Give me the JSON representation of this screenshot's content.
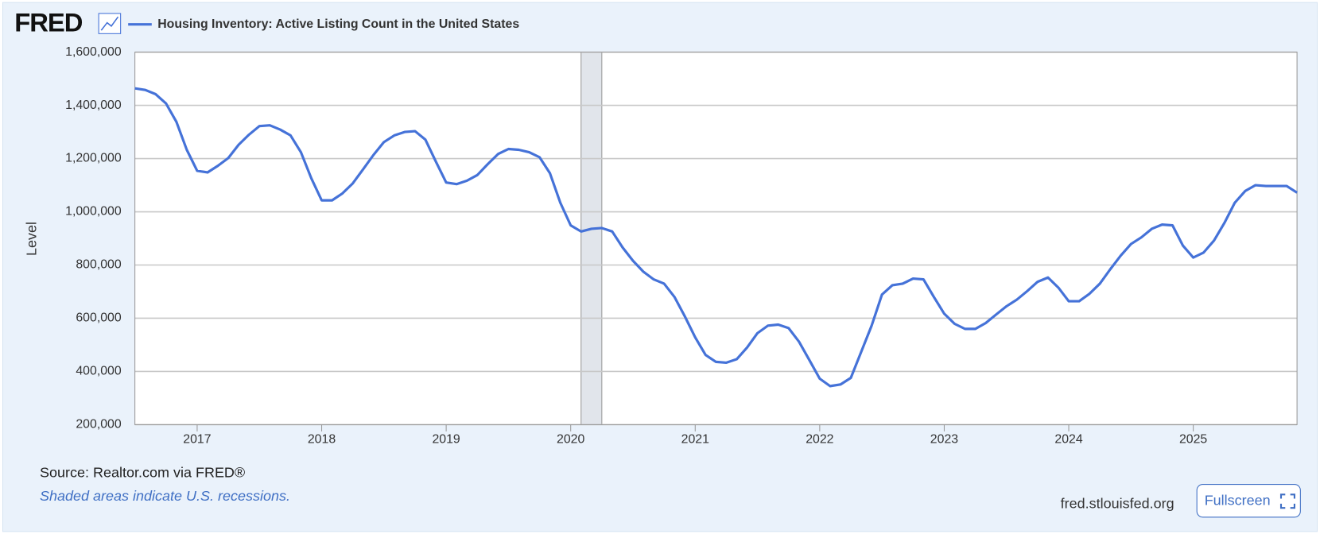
{
  "logo": "FRED",
  "chart_data": {
    "type": "line",
    "title": "Housing Inventory: Active Listing Count in the United States",
    "y_label": "Level",
    "source": "Source: Realtor.com via FRED®",
    "note": "Shaded areas indicate U.S. recessions.",
    "site": "fred.stlouisfed.org",
    "button": "Fullscreen",
    "recessions": [
      [
        "2020-02",
        "2020-04"
      ]
    ],
    "xlim": [
      "2016-07",
      "2025-11"
    ],
    "xticks": [
      {
        "value": "2017-01",
        "label": "2017"
      },
      {
        "value": "2018-01",
        "label": "2018"
      },
      {
        "value": "2019-01",
        "label": "2019"
      },
      {
        "value": "2020-01",
        "label": "2020"
      },
      {
        "value": "2021-01",
        "label": "2021"
      },
      {
        "value": "2022-01",
        "label": "2022"
      },
      {
        "value": "2023-01",
        "label": "2023"
      },
      {
        "value": "2024-01",
        "label": "2024"
      },
      {
        "value": "2025-01",
        "label": "2025"
      }
    ],
    "ylim": [
      200000,
      1600000
    ],
    "yticks": [
      {
        "value": 200000,
        "label": "200,000"
      },
      {
        "value": 400000,
        "label": "400,000"
      },
      {
        "value": 600000,
        "label": "600,000"
      },
      {
        "value": 800000,
        "label": "800,000"
      },
      {
        "value": 1000000,
        "label": "1,000,000"
      },
      {
        "value": 1200000,
        "label": "1,200,000"
      },
      {
        "value": 1400000,
        "label": "1,400,000"
      },
      {
        "value": 1600000,
        "label": "1,600,000"
      }
    ],
    "grid": true,
    "x": [
      "2016-07",
      "2016-08",
      "2016-09",
      "2016-10",
      "2016-11",
      "2016-12",
      "2017-01",
      "2017-02",
      "2017-03",
      "2017-04",
      "2017-05",
      "2017-06",
      "2017-07",
      "2017-08",
      "2017-09",
      "2017-10",
      "2017-11",
      "2017-12",
      "2018-01",
      "2018-02",
      "2018-03",
      "2018-04",
      "2018-05",
      "2018-06",
      "2018-07",
      "2018-08",
      "2018-09",
      "2018-10",
      "2018-11",
      "2018-12",
      "2019-01",
      "2019-02",
      "2019-03",
      "2019-04",
      "2019-05",
      "2019-06",
      "2019-07",
      "2019-08",
      "2019-09",
      "2019-10",
      "2019-11",
      "2019-12",
      "2020-01",
      "2020-02",
      "2020-03",
      "2020-04",
      "2020-05",
      "2020-06",
      "2020-07",
      "2020-08",
      "2020-09",
      "2020-10",
      "2020-11",
      "2020-12",
      "2021-01",
      "2021-02",
      "2021-03",
      "2021-04",
      "2021-05",
      "2021-06",
      "2021-07",
      "2021-08",
      "2021-09",
      "2021-10",
      "2021-11",
      "2021-12",
      "2022-01",
      "2022-02",
      "2022-03",
      "2022-04",
      "2022-05",
      "2022-06",
      "2022-07",
      "2022-08",
      "2022-09",
      "2022-10",
      "2022-11",
      "2022-12",
      "2023-01",
      "2023-02",
      "2023-03",
      "2023-04",
      "2023-05",
      "2023-06",
      "2023-07",
      "2023-08",
      "2023-09",
      "2023-10",
      "2023-11",
      "2023-12",
      "2024-01",
      "2024-02",
      "2024-03",
      "2024-04",
      "2024-05",
      "2024-06",
      "2024-07",
      "2024-08",
      "2024-09",
      "2024-10",
      "2024-11",
      "2024-12",
      "2025-01",
      "2025-02",
      "2025-03",
      "2025-04",
      "2025-05",
      "2025-06",
      "2025-07",
      "2025-08",
      "2025-09",
      "2025-10",
      "2025-11"
    ],
    "series": [
      {
        "name": "Housing Inventory: Active Listing Count in the United States",
        "color": "#4572d8",
        "values": [
          1464000,
          1458000,
          1442000,
          1407000,
          1338000,
          1233000,
          1154000,
          1148000,
          1173000,
          1202000,
          1252000,
          1290000,
          1322000,
          1325000,
          1309000,
          1287000,
          1224000,
          1126000,
          1043000,
          1043000,
          1069000,
          1107000,
          1160000,
          1214000,
          1262000,
          1287000,
          1300000,
          1303000,
          1271000,
          1189000,
          1110000,
          1104000,
          1117000,
          1138000,
          1179000,
          1217000,
          1236000,
          1233000,
          1224000,
          1205000,
          1145000,
          1034000,
          949000,
          926000,
          936000,
          939000,
          926000,
          866000,
          816000,
          775000,
          746000,
          730000,
          680000,
          607000,
          528000,
          462000,
          436000,
          433000,
          446000,
          490000,
          544000,
          572000,
          576000,
          563000,
          512000,
          443000,
          373000,
          345000,
          351000,
          376000,
          474000,
          572000,
          689000,
          724000,
          730000,
          749000,
          746000,
          680000,
          617000,
          579000,
          560000,
          560000,
          582000,
          614000,
          645000,
          670000,
          702000,
          737000,
          753000,
          715000,
          664000,
          664000,
          692000,
          730000,
          784000,
          835000,
          879000,
          904000,
          936000,
          952000,
          949000,
          873000,
          828000,
          847000,
          892000,
          958000,
          1034000,
          1078000,
          1100000,
          1097000,
          1097000,
          1097000,
          1072000
        ]
      }
    ]
  }
}
